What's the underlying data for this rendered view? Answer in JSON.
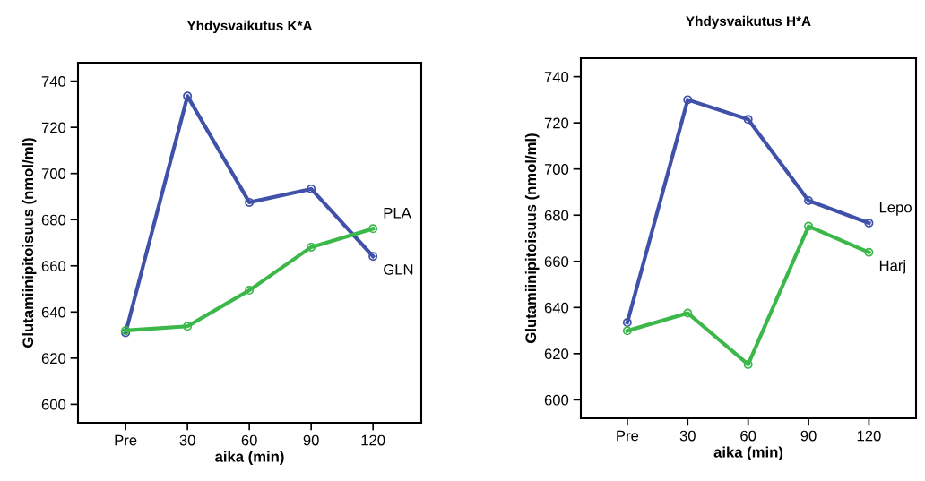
{
  "chart_data": [
    {
      "type": "line",
      "title": "Yhdysvaikutus K*A",
      "xlabel": "aika (min)",
      "ylabel": "Glutamiinipitoisuus (nmol/ml)",
      "categories": [
        "Pre",
        "30",
        "60",
        "90",
        "120"
      ],
      "series": [
        {
          "name": "GLN",
          "color": "#3f51a8",
          "values": [
            631,
            733.5,
            687.5,
            693.3,
            664.1
          ]
        },
        {
          "name": "PLA",
          "color": "#3cb84a",
          "values": [
            632,
            633.8,
            649.4,
            668.1,
            676.1
          ]
        }
      ],
      "ylim": [
        592,
        748
      ],
      "yticks": [
        600,
        620,
        640,
        660,
        680,
        700,
        720,
        740
      ],
      "grid": false,
      "legend": false,
      "marker": "circle",
      "line_style": "solid"
    },
    {
      "type": "line",
      "title": "Yhdysvaikutus H*A",
      "xlabel": "aika (min)",
      "ylabel": "Glutamiinipitoisuus (nmol/ml)",
      "categories": [
        "Pre",
        "30",
        "60",
        "90",
        "120"
      ],
      "series": [
        {
          "name": "Lepo",
          "color": "#3f51a8",
          "values": [
            633.5,
            730,
            721.5,
            686.3,
            676.6
          ]
        },
        {
          "name": "Harj",
          "color": "#3cb84a",
          "values": [
            629.9,
            637.6,
            615.3,
            675.2,
            663.9
          ]
        }
      ],
      "ylim": [
        592,
        748
      ],
      "yticks": [
        600,
        620,
        640,
        660,
        680,
        700,
        720,
        740
      ],
      "grid": false,
      "legend": false,
      "marker": "circle",
      "line_style": "solid"
    }
  ]
}
